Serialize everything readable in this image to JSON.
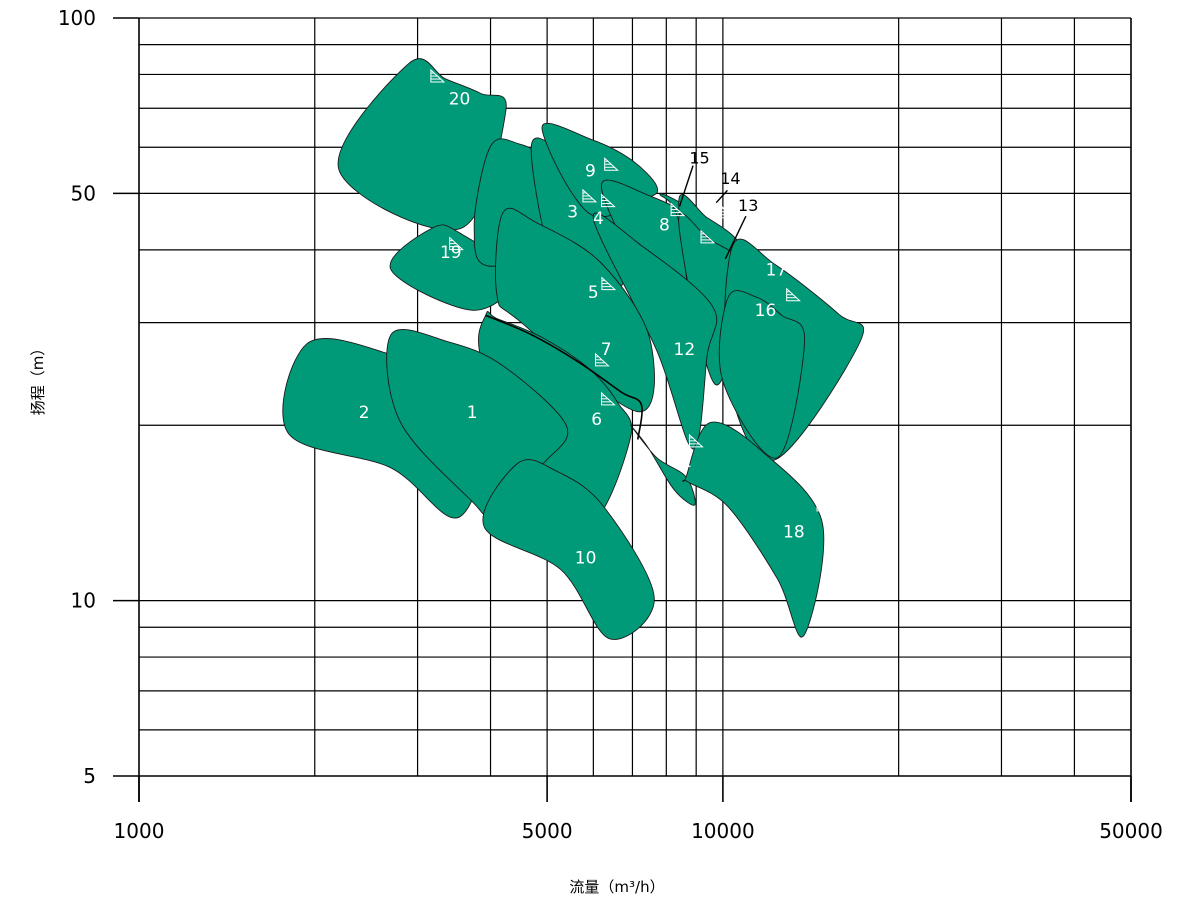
{
  "chart_data": {
    "type": "area",
    "title": "",
    "xlabel": "流量（m³/h）",
    "ylabel": "扬程（m）",
    "xscale": "log",
    "yscale": "log",
    "xlim": [
      1000,
      50000
    ],
    "ylim": [
      5,
      100
    ],
    "x_ticks": [
      {
        "value": 1000,
        "label": "1000"
      },
      {
        "value": 5000,
        "label": "5000"
      },
      {
        "value": 10000,
        "label": "10000"
      },
      {
        "value": 50000,
        "label": "50000"
      }
    ],
    "y_ticks": [
      {
        "value": 5,
        "label": "5"
      },
      {
        "value": 10,
        "label": "10"
      },
      {
        "value": 50,
        "label": "50"
      },
      {
        "value": 100,
        "label": "100"
      }
    ],
    "x_grid": [
      2000,
      3000,
      4000,
      5000,
      6000,
      7000,
      8000,
      9000,
      10000,
      20000,
      30000,
      40000
    ],
    "y_grid": [
      6,
      7,
      8,
      9,
      10,
      20,
      30,
      40,
      50,
      60,
      70,
      80,
      90,
      100
    ],
    "grid": true,
    "fill_color": "#009a78",
    "regions": [
      {
        "label": "20",
        "q": [
          2900,
          3350,
          3850,
          4250,
          3550,
          2200
        ],
        "h": [
          83.6,
          78.6,
          74.2,
          69.4,
          43.5,
          54.9
        ]
      },
      {
        "label": "19",
        "q": [
          3180,
          3550,
          4400,
          3730,
          2700
        ],
        "h": [
          43.6,
          42.7,
          36.1,
          31.5,
          37.0
        ]
      },
      {
        "label": "3",
        "q": [
          4000,
          4500,
          5150,
          5900,
          6200,
          4050,
          3750
        ],
        "h": [
          60.2,
          60.7,
          56.5,
          50.2,
          44.7,
          37.5,
          43.5
        ]
      },
      {
        "label": "4",
        "q": [
          4700,
          5600,
          6900,
          6600,
          5300
        ],
        "h": [
          60.5,
          55.5,
          42.8,
          34.1,
          34.2
        ]
      },
      {
        "label": "9",
        "q": [
          4900,
          5950,
          6950,
          7700,
          7400,
          5900
        ],
        "h": [
          64.9,
          61.9,
          57.2,
          51.5,
          49.0,
          46.2
        ]
      },
      {
        "label": "8",
        "q": [
          6200,
          7500,
          8800,
          9200,
          8300,
          7000
        ],
        "h": [
          52.0,
          49.5,
          45.5,
          41.2,
          28.8,
          38.4
        ]
      },
      {
        "label": "15",
        "q": [
          7800,
          8600,
          9650,
          10200,
          9100,
          8400
        ],
        "h": [
          49.8,
          47.7,
          43.5,
          39.4,
          26.9,
          44.8
        ]
      },
      {
        "label": "14",
        "q": [
          8400,
          9400,
          10500,
          10800,
          9400
        ],
        "h": [
          48.1,
          45.4,
          41.9,
          38.5,
          25.5
        ]
      },
      {
        "label": "13",
        "q": [
          8400,
          9500,
          10800,
          11000,
          9700
        ],
        "h": [
          44.7,
          41.6,
          38.6,
          36.1,
          23.5
        ]
      },
      {
        "label": "12",
        "q": [
          6000,
          7250,
          9600,
          9400,
          8900,
          7700
        ],
        "h": [
          45.3,
          40.7,
          32.0,
          26.4,
          18.2,
          26.9
        ]
      },
      {
        "label": "17",
        "q": [
          10400,
          12300,
          15800,
          17200,
          12200,
          10200
        ],
        "h": [
          40.7,
          37.7,
          31.0,
          27.9,
          17.4,
          24.2
        ]
      },
      {
        "label": "16",
        "q": [
          10200,
          11400,
          12600,
          13800,
          12400,
          10000
        ],
        "h": [
          33.1,
          33.2,
          30.9,
          28.0,
          17.6,
          23.8
        ]
      },
      {
        "label": "5",
        "q": [
          4200,
          4800,
          6200,
          7500,
          7150,
          4500,
          4100
        ],
        "h": [
          46.3,
          44.5,
          37.9,
          28.1,
          21.1,
          30.1,
          33.6
        ]
      },
      {
        "label": "6",
        "q": [
          3930,
          4100,
          4900,
          5900,
          6600,
          6950,
          5950,
          4750,
          3860
        ],
        "h": [
          31.0,
          30.5,
          28.3,
          25.0,
          21.9,
          19.1,
          13.6,
          16.0,
          25.9
        ]
      },
      {
        "label": "11",
        "q": [
          6950,
          7450,
          8250,
          8950,
          8650,
          7700
        ],
        "h": [
          20.0,
          18.3,
          15.5,
          14.6,
          16.3,
          17.6
        ]
      },
      {
        "label": "18",
        "q": [
          8650,
          9500,
          11700,
          14800,
          13750,
          12400,
          10200,
          8700
        ],
        "h": [
          16.3,
          20.2,
          18.0,
          13.6,
          8.7,
          10.9,
          14.5,
          16.0
        ]
      },
      {
        "label": "2",
        "q": [
          1940,
          2650,
          3370,
          3980,
          3530,
          2700,
          1800
        ],
        "h": [
          27.6,
          26.6,
          23.3,
          20.0,
          13.9,
          16.9,
          19.4
        ]
      },
      {
        "label": "1",
        "q": [
          2700,
          3390,
          4200,
          5390,
          4980,
          4400,
          3950,
          3720,
          2800
        ],
        "h": [
          28.6,
          27.8,
          25.3,
          20.0,
          17.4,
          15.8,
          14.2,
          14.8,
          20.3
        ]
      },
      {
        "label": "10",
        "q": [
          4450,
          5180,
          6250,
          7630,
          6400,
          5280,
          3900
        ],
        "h": [
          17.2,
          16.7,
          14.5,
          10.1,
          8.6,
          11.3,
          13.4
        ]
      }
    ],
    "inner_curve": {
      "q": [
        3920,
        4700,
        5650,
        6700,
        7250,
        7150
      ],
      "h": [
        30.9,
        28.6,
        25.7,
        22.8,
        21.7,
        18.9
      ]
    },
    "region_labels": [
      {
        "label": "20",
        "q": 3540,
        "h": 72.4
      },
      {
        "label": "9",
        "q": 5930,
        "h": 54.5
      },
      {
        "label": "3",
        "q": 5530,
        "h": 46.4
      },
      {
        "label": "4",
        "q": 6120,
        "h": 45.2
      },
      {
        "label": "8",
        "q": 7940,
        "h": 44.0
      },
      {
        "label": "19",
        "q": 3420,
        "h": 39.5
      },
      {
        "label": "5",
        "q": 6000,
        "h": 33.7
      },
      {
        "label": "17",
        "q": 12350,
        "h": 36.9
      },
      {
        "label": "16",
        "q": 11830,
        "h": 31.4
      },
      {
        "label": "7",
        "q": 6310,
        "h": 26.9
      },
      {
        "label": "12",
        "q": 8590,
        "h": 26.9
      },
      {
        "label": "2",
        "q": 2430,
        "h": 21.0
      },
      {
        "label": "1",
        "q": 3720,
        "h": 21.0
      },
      {
        "label": "6",
        "q": 6080,
        "h": 20.4
      },
      {
        "label": "11",
        "q": 8480,
        "h": 17.3
      },
      {
        "label": "18",
        "q": 13230,
        "h": 13.1
      },
      {
        "label": "10",
        "q": 5820,
        "h": 11.8
      }
    ],
    "external_labels": [
      {
        "label": "15",
        "q": 9120,
        "h": 57.3,
        "leader": [
          [
            8890,
            55.8
          ],
          [
            8430,
            47.5
          ]
        ]
      },
      {
        "label": "14",
        "q": 10300,
        "h": 52.8,
        "leader": [
          [
            10180,
            50.6
          ],
          [
            9740,
            48.2
          ]
        ]
      },
      {
        "label": "13",
        "q": 11050,
        "h": 47.5,
        "leader": [
          [
            10950,
            45.7
          ],
          [
            10100,
            38.6
          ]
        ]
      }
    ],
    "markers": [
      {
        "q": 3250,
        "h": 79.5
      },
      {
        "q": 3500,
        "h": 41.0
      },
      {
        "q": 5920,
        "h": 49.5
      },
      {
        "q": 6370,
        "h": 48.6
      },
      {
        "q": 6450,
        "h": 56.1
      },
      {
        "q": 8380,
        "h": 46.9
      },
      {
        "q": 9430,
        "h": 42.1
      },
      {
        "q": 10200,
        "h": 46.5
      },
      {
        "q": 6380,
        "h": 35.0
      },
      {
        "q": 14590,
        "h": 35.9
      },
      {
        "q": 13220,
        "h": 33.5
      },
      {
        "q": 6220,
        "h": 25.9
      },
      {
        "q": 6370,
        "h": 22.2
      },
      {
        "q": 9010,
        "h": 18.8
      },
      {
        "q": 14900,
        "h": 14.6
      }
    ]
  }
}
